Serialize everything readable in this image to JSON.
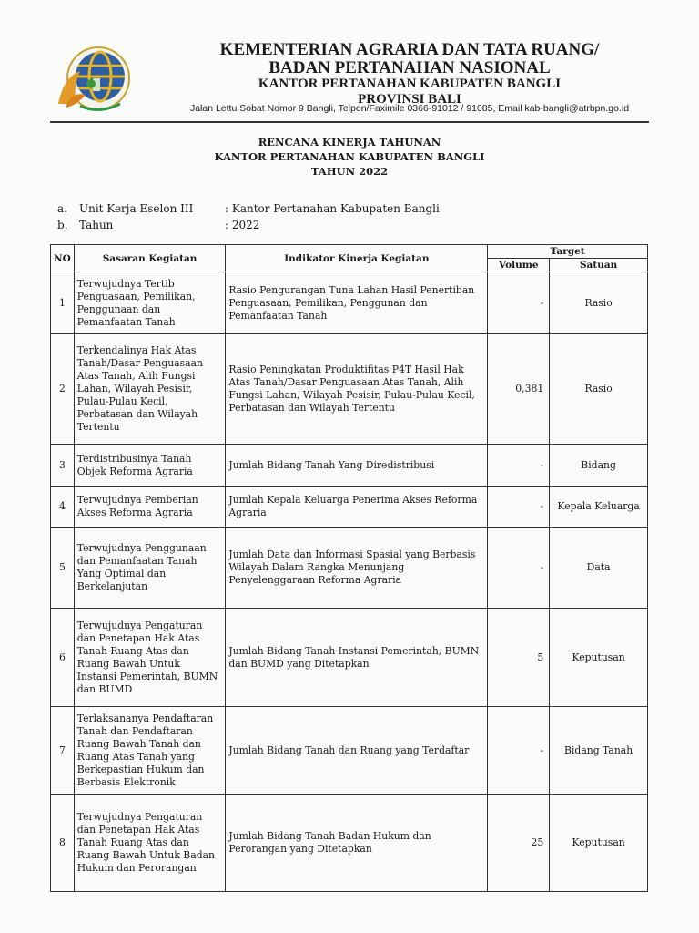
{
  "header": {
    "line1": "KEMENTERIAN AGRARIA DAN TATA RUANG/",
    "line2": "BADAN PERTANAHAN NASIONAL",
    "line3": "KANTOR PERTANAHAN KABUPATEN BANGLI",
    "line4": "PROVINSI BALI",
    "address": "Jalan Lettu Sobat Nomor 9 Bangli, Telpon/Faximile 0366-91012 / 91085, Email kab-bangli@atrbpn.go.id",
    "logo_text": "KEMENTERIAN AGRARIA DAN TATA RUANG / BADAN PERTANAHAN NASIONAL"
  },
  "title": {
    "line1": "RENCANA KINERJA TAHUNAN",
    "line2": "KANTOR PERTANAHAN KABUPATEN BANGLI",
    "line3": "TAHUN 2022"
  },
  "meta": [
    {
      "letter": "a.",
      "label": "Unit Kerja Eselon III",
      "value": ": Kantor Pertanahan Kabupaten Bangli"
    },
    {
      "letter": "b.",
      "label": "Tahun",
      "value": ": 2022"
    }
  ],
  "table": {
    "headers": {
      "no": "NO",
      "sasaran": "Sasaran Kegiatan",
      "indikator": "Indikator Kinerja Kegiatan",
      "target": "Target",
      "volume": "Volume",
      "satuan": "Satuan"
    },
    "rows": [
      {
        "no": "1",
        "sasaran": "Terwujudnya Tertib Penguasaan, Pemilikan, Penggunaan dan Pemanfaatan Tanah",
        "indikator": "Rasio Pengurangan Tuna Lahan Hasil Penertiban Penguasaan, Pemilikan, Penggunan dan Pemanfaatan Tanah",
        "volume": "-",
        "satuan": "Rasio"
      },
      {
        "no": "2",
        "sasaran": "Terkendalinya Hak Atas Tanah/Dasar Penguasaan Atas Tanah, Alih Fungsi Lahan, Wilayah Pesisir, Pulau-Pulau Kecil, Perbatasan dan Wilayah Tertentu",
        "indikator": "Rasio Peningkatan Produktifitas P4T Hasil Hak Atas Tanah/Dasar Penguasaan Atas Tanah, Alih Fungsi Lahan, Wilayah Pesisir, Pulau-Pulau Kecil, Perbatasan dan Wilayah Tertentu",
        "volume": "0,381",
        "satuan": "Rasio"
      },
      {
        "no": "3",
        "sasaran": "Terdistribusinya Tanah Objek Reforma Agraria",
        "indikator": "Jumlah Bidang Tanah Yang Diredistribusi",
        "volume": "-",
        "satuan": "Bidang"
      },
      {
        "no": "4",
        "sasaran": "Terwujudnya Pemberian Akses Reforma Agraria",
        "indikator": "Jumlah Kepala Keluarga Penerima Akses Reforma Agraria",
        "volume": "-",
        "satuan": "Kepala Keluarga"
      },
      {
        "no": "5",
        "sasaran": "Terwujudnya Penggunaan dan Pemanfaatan Tanah Yang Optimal dan Berkelanjutan",
        "indikator": "Jumlah Data dan Informasi Spasial yang Berbasis Wilayah Dalam Rangka Menunjang Penyelenggaraan Reforma Agraria",
        "volume": "-",
        "satuan": "Data"
      },
      {
        "no": "6",
        "sasaran": "Terwujudnya Pengaturan dan Penetapan Hak Atas Tanah Ruang Atas dan Ruang Bawah Untuk Instansi Pemerintah, BUMN dan BUMD",
        "indikator": "Jumlah Bidang Tanah Instansi Pemerintah, BUMN dan BUMD yang Ditetapkan",
        "volume": "5",
        "satuan": "Keputusan"
      },
      {
        "no": "7",
        "sasaran": "Terlaksananya Pendaftaran Tanah dan Pendaftaran Ruang Bawah Tanah dan Ruang Atas Tanah yang Berkepastian Hukum dan Berbasis Elektronik",
        "indikator": "Jumlah Bidang Tanah dan Ruang yang Terdaftar",
        "volume": "-",
        "satuan": "Bidang Tanah"
      },
      {
        "no": "8",
        "sasaran": "Terwujudnya Pengaturan dan Penetapan Hak Atas Tanah Ruang Atas dan Ruang Bawah Untuk Badan Hukum dan Perorangan",
        "indikator": "Jumlah Bidang Tanah Badan Hukum dan Perorangan yang Ditetapkan",
        "volume": "25",
        "satuan": "Keputusan"
      }
    ]
  }
}
